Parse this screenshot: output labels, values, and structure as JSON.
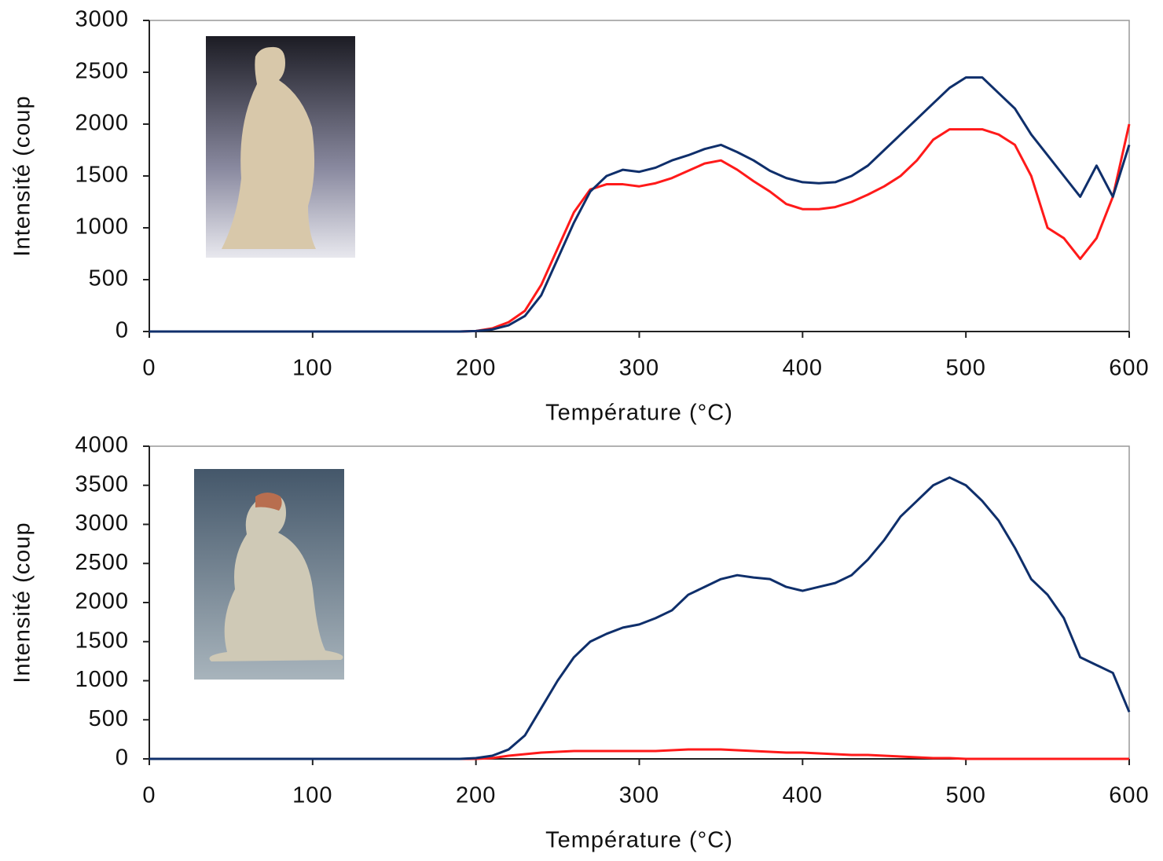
{
  "chart_data": [
    {
      "type": "line",
      "xlabel": "Température (°C)",
      "ylabel": "Intensité (coup",
      "xlim": [
        0,
        600
      ],
      "xticks": [
        0,
        100,
        200,
        300,
        400,
        500,
        600
      ],
      "ylim": [
        0,
        3000
      ],
      "yticks": [
        0,
        500,
        1000,
        1500,
        2000,
        2500,
        3000
      ],
      "x": [
        0,
        10,
        20,
        30,
        40,
        50,
        60,
        70,
        80,
        90,
        100,
        110,
        120,
        130,
        140,
        150,
        160,
        170,
        180,
        190,
        200,
        210,
        220,
        230,
        240,
        250,
        260,
        270,
        280,
        290,
        300,
        310,
        320,
        330,
        340,
        350,
        360,
        370,
        380,
        390,
        400,
        410,
        420,
        430,
        440,
        450,
        460,
        470,
        480,
        490,
        500,
        510,
        520,
        530,
        540,
        550,
        560,
        570,
        580,
        590,
        600
      ],
      "series": [
        {
          "color": "#ff1a1a",
          "values": [
            0,
            0,
            0,
            0,
            0,
            0,
            0,
            0,
            0,
            0,
            0,
            0,
            0,
            0,
            0,
            0,
            0,
            0,
            0,
            0,
            5,
            30,
            90,
            200,
            450,
            800,
            1150,
            1370,
            1420,
            1420,
            1400,
            1430,
            1480,
            1550,
            1620,
            1650,
            1560,
            1450,
            1350,
            1230,
            1180,
            1180,
            1200,
            1250,
            1320,
            1400,
            1500,
            1650,
            1850,
            1950,
            1950,
            1950,
            1900,
            1800,
            1500,
            1000,
            900,
            700,
            900,
            1300,
            2000
          ]
        },
        {
          "color": "#0f2f6b",
          "values": [
            0,
            0,
            0,
            0,
            0,
            0,
            0,
            0,
            0,
            0,
            0,
            0,
            0,
            0,
            0,
            0,
            0,
            0,
            0,
            0,
            5,
            20,
            60,
            150,
            350,
            700,
            1050,
            1350,
            1500,
            1560,
            1540,
            1580,
            1650,
            1700,
            1760,
            1800,
            1730,
            1650,
            1550,
            1480,
            1440,
            1430,
            1440,
            1500,
            1600,
            1750,
            1900,
            2050,
            2200,
            2350,
            2450,
            2450,
            2300,
            2150,
            1900,
            1700,
            1500,
            1300,
            1600,
            1300,
            1800
          ]
        }
      ]
    },
    {
      "type": "line",
      "xlabel": "Température (°C)",
      "ylabel": "Intensité (coup",
      "xlim": [
        0,
        600
      ],
      "xticks": [
        0,
        100,
        200,
        300,
        400,
        500,
        600
      ],
      "ylim": [
        0,
        4000
      ],
      "yticks": [
        0,
        500,
        1000,
        1500,
        2000,
        2500,
        3000,
        3500,
        4000
      ],
      "x": [
        0,
        10,
        20,
        30,
        40,
        50,
        60,
        70,
        80,
        90,
        100,
        110,
        120,
        130,
        140,
        150,
        160,
        170,
        180,
        190,
        200,
        210,
        220,
        230,
        240,
        250,
        260,
        270,
        280,
        290,
        300,
        310,
        320,
        330,
        340,
        350,
        360,
        370,
        380,
        390,
        400,
        410,
        420,
        430,
        440,
        450,
        460,
        470,
        480,
        490,
        500,
        510,
        520,
        530,
        540,
        550,
        560,
        570,
        580,
        590,
        600
      ],
      "series": [
        {
          "color": "#ff1a1a",
          "values": [
            0,
            0,
            0,
            0,
            0,
            0,
            0,
            0,
            0,
            0,
            0,
            0,
            0,
            0,
            0,
            0,
            0,
            0,
            0,
            0,
            0,
            10,
            40,
            60,
            80,
            90,
            100,
            100,
            100,
            100,
            100,
            100,
            110,
            120,
            120,
            120,
            110,
            100,
            90,
            80,
            80,
            70,
            60,
            50,
            50,
            40,
            30,
            20,
            10,
            10,
            0,
            0,
            0,
            0,
            0,
            0,
            0,
            0,
            0,
            0,
            0
          ]
        },
        {
          "color": "#0f2f6b",
          "values": [
            0,
            0,
            0,
            0,
            0,
            0,
            0,
            0,
            0,
            0,
            0,
            0,
            0,
            0,
            0,
            0,
            0,
            0,
            0,
            0,
            10,
            40,
            120,
            300,
            650,
            1000,
            1300,
            1500,
            1600,
            1680,
            1720,
            1800,
            1900,
            2100,
            2200,
            2300,
            2350,
            2320,
            2300,
            2200,
            2150,
            2200,
            2250,
            2350,
            2550,
            2800,
            3100,
            3300,
            3500,
            3600,
            3500,
            3300,
            3050,
            2700,
            2300,
            2100,
            1800,
            1300,
            1200,
            1100,
            600
          ]
        }
      ]
    }
  ]
}
